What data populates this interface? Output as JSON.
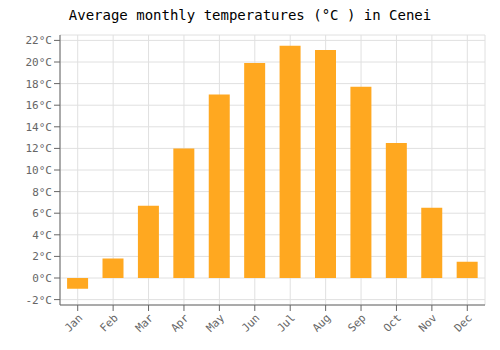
{
  "chart_data": {
    "type": "bar",
    "title": "Average monthly temperatures (°C ) in Cenei",
    "categories": [
      "Jan",
      "Feb",
      "Mar",
      "Apr",
      "May",
      "Jun",
      "Jul",
      "Aug",
      "Sep",
      "Oct",
      "Nov",
      "Dec"
    ],
    "values": [
      -1.0,
      1.8,
      6.7,
      12.0,
      17.0,
      19.9,
      21.5,
      21.1,
      17.7,
      12.5,
      6.5,
      1.5
    ],
    "color": "#FFA820",
    "ylim": [
      -2.5,
      22.5
    ],
    "yticks": [
      {
        "value": -2,
        "label": "-2°C"
      },
      {
        "value": 0,
        "label": "0°C"
      },
      {
        "value": 2,
        "label": "2°C"
      },
      {
        "value": 4,
        "label": "4°C"
      },
      {
        "value": 6,
        "label": "6°C"
      },
      {
        "value": 8,
        "label": "8°C"
      },
      {
        "value": 10,
        "label": "10°C"
      },
      {
        "value": 12,
        "label": "12°C"
      },
      {
        "value": 14,
        "label": "14°C"
      },
      {
        "value": 16,
        "label": "16°C"
      },
      {
        "value": 18,
        "label": "18°C"
      },
      {
        "value": 20,
        "label": "20°C"
      },
      {
        "value": 22,
        "label": "22°C"
      }
    ],
    "grid": true
  }
}
